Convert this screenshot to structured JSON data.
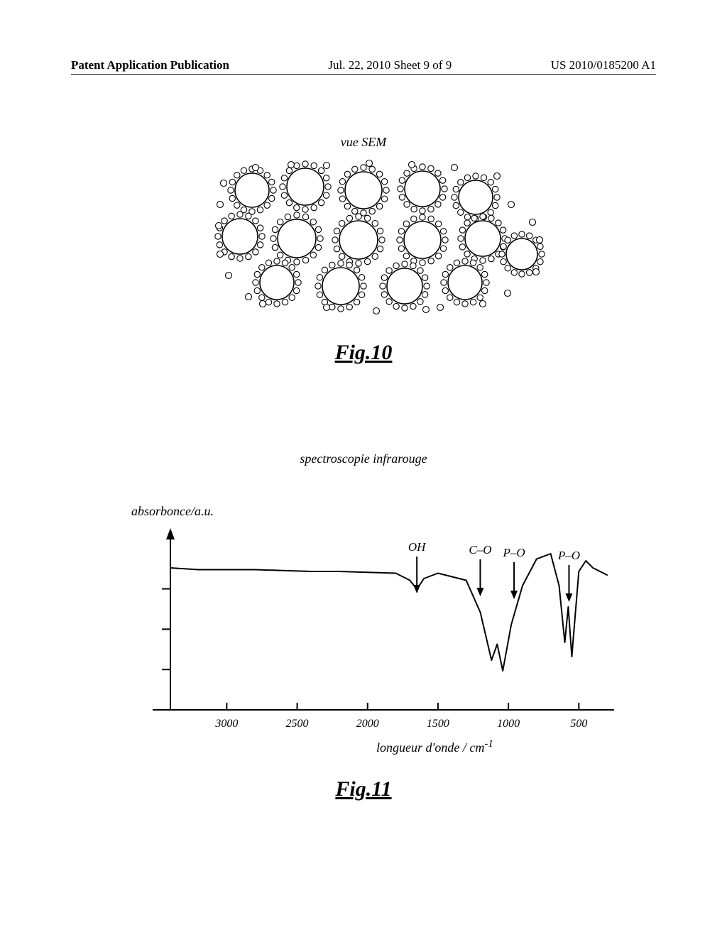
{
  "header": {
    "left": "Patent Application Publication",
    "center": "Jul. 22, 2010  Sheet 9 of 9",
    "right": "US 2010/0185200 A1"
  },
  "fig10": {
    "title": "vue  SEM",
    "caption": "Fig.10",
    "stroke_color": "#000000",
    "fill_color": "#ffffff",
    "background": "#ffffff"
  },
  "fig11": {
    "type": "line",
    "title": "spectroscopie  infrarouge",
    "ylabel": "absorbonce/a.u.",
    "xlabel": "longueur  d'onde   /   cm",
    "xlabel_sup": "-1",
    "caption": "Fig.11",
    "x_ticks": [
      3000,
      2500,
      2000,
      1500,
      1000,
      500
    ],
    "x_range": [
      3400,
      300
    ],
    "y_ticks_count": 3,
    "peak_labels": [
      {
        "x": 1650,
        "text": "OH"
      },
      {
        "x": 1200,
        "text": "C–O"
      },
      {
        "x": 960,
        "text": "P–O"
      },
      {
        "x": 570,
        "text": "P–O"
      }
    ],
    "line_color": "#000000",
    "line_width": 2,
    "axis_color": "#000000",
    "background": "#ffffff",
    "curve": [
      [
        3400,
        0.8
      ],
      [
        3200,
        0.79
      ],
      [
        3000,
        0.79
      ],
      [
        2800,
        0.79
      ],
      [
        2600,
        0.785
      ],
      [
        2400,
        0.78
      ],
      [
        2200,
        0.78
      ],
      [
        2000,
        0.775
      ],
      [
        1800,
        0.77
      ],
      [
        1700,
        0.73
      ],
      [
        1650,
        0.68
      ],
      [
        1600,
        0.74
      ],
      [
        1500,
        0.77
      ],
      [
        1300,
        0.73
      ],
      [
        1200,
        0.55
      ],
      [
        1120,
        0.28
      ],
      [
        1080,
        0.37
      ],
      [
        1040,
        0.22
      ],
      [
        980,
        0.48
      ],
      [
        900,
        0.7
      ],
      [
        800,
        0.85
      ],
      [
        700,
        0.88
      ],
      [
        640,
        0.7
      ],
      [
        600,
        0.38
      ],
      [
        575,
        0.58
      ],
      [
        550,
        0.3
      ],
      [
        500,
        0.78
      ],
      [
        450,
        0.84
      ],
      [
        400,
        0.8
      ],
      [
        350,
        0.78
      ],
      [
        300,
        0.76
      ]
    ]
  }
}
